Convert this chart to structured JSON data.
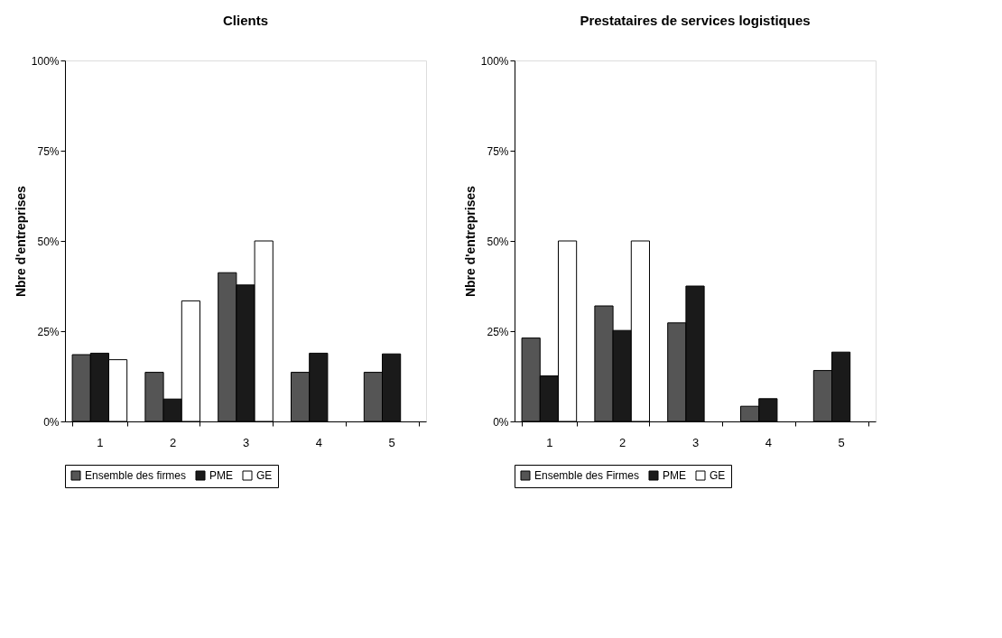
{
  "chart_data": [
    {
      "type": "bar",
      "title": "Clients",
      "ylabel": "Nbre d'entreprises",
      "categories": [
        "1",
        "2",
        "3",
        "4",
        "5"
      ],
      "ylim": [
        0,
        100
      ],
      "yticks": [
        {
          "value": 0,
          "label": "0%"
        },
        {
          "value": 25,
          "label": "25%"
        },
        {
          "value": 50,
          "label": "50%"
        },
        {
          "value": 75,
          "label": "75%"
        },
        {
          "value": 100,
          "label": "100%"
        }
      ],
      "legend": "bottom",
      "series": [
        {
          "name": "Ensemble des firmes",
          "color": "#555555",
          "values": [
            18.5,
            13.6,
            41.2,
            13.6,
            13.6
          ]
        },
        {
          "name": "PME",
          "color": "#1a1a1a",
          "values": [
            18.9,
            6.2,
            37.8,
            18.9,
            18.7
          ]
        },
        {
          "name": "GE",
          "color": "#ffffff",
          "values": [
            17.1,
            33.4,
            50,
            null,
            null
          ]
        }
      ]
    },
    {
      "type": "bar",
      "title": "Prestataires de services logistiques",
      "ylabel": "Nbre d'entreprises",
      "categories": [
        "1",
        "2",
        "3",
        "4",
        "5"
      ],
      "ylim": [
        0,
        100
      ],
      "yticks": [
        {
          "value": 0,
          "label": "0%"
        },
        {
          "value": 25,
          "label": "25%"
        },
        {
          "value": 50,
          "label": "50%"
        },
        {
          "value": 75,
          "label": "75%"
        },
        {
          "value": 100,
          "label": "100%"
        }
      ],
      "legend": "bottom",
      "series": [
        {
          "name": "Ensemble des Firmes",
          "color": "#555555",
          "values": [
            23.1,
            32.0,
            27.3,
            4.2,
            14.1
          ]
        },
        {
          "name": "PME",
          "color": "#1a1a1a",
          "values": [
            12.6,
            25.2,
            37.5,
            6.3,
            19.2
          ]
        },
        {
          "name": "GE",
          "color": "#ffffff",
          "values": [
            50,
            50,
            null,
            null,
            null
          ]
        }
      ]
    }
  ]
}
